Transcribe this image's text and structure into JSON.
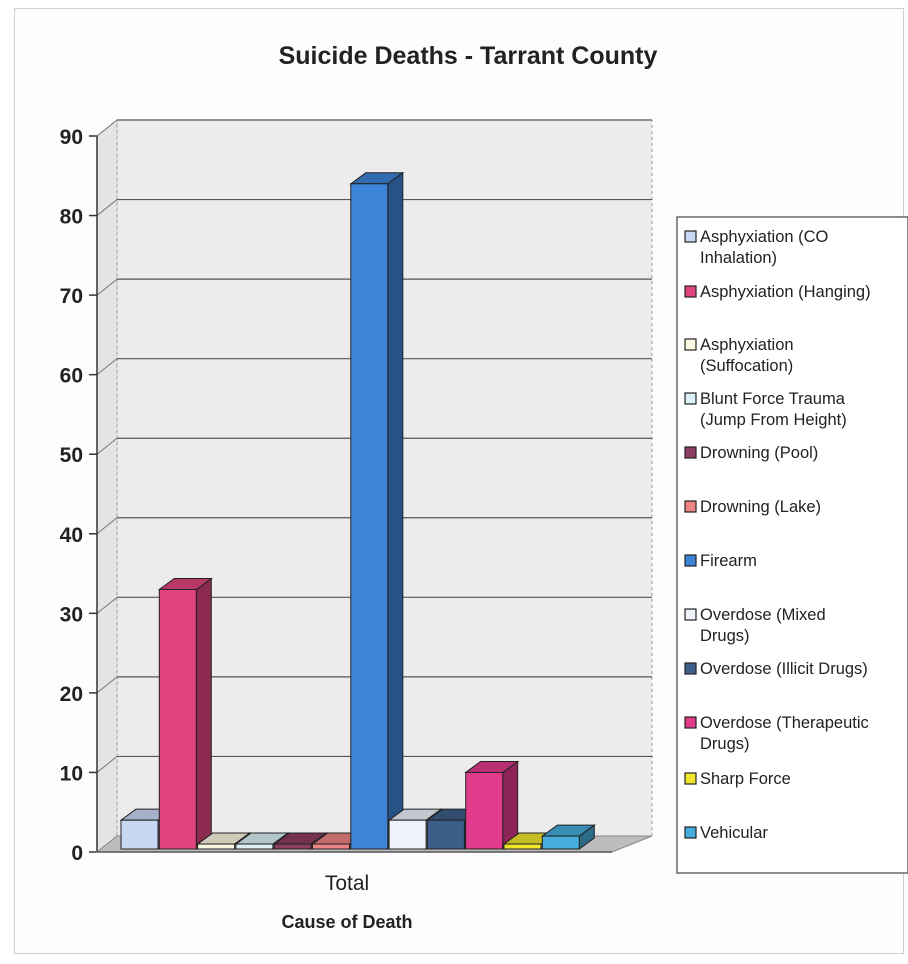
{
  "chart_data": {
    "type": "bar",
    "title": "Suicide Deaths - Tarrant County",
    "xlabel": "Cause of Death",
    "ylabel": "",
    "categories": [
      "Total"
    ],
    "ylim": [
      0,
      90
    ],
    "yticks": [
      0,
      10,
      20,
      30,
      40,
      50,
      60,
      70,
      80,
      90
    ],
    "grid": true,
    "legend_position": "right",
    "series": [
      {
        "name": "Asphyxiation (CO Inhalation)",
        "legend_lines": [
          "Asphyxiation (CO",
          "Inhalation)"
        ],
        "values": [
          4
        ],
        "color": "#c8d8f4"
      },
      {
        "name": "Asphyxiation (Hanging)",
        "legend_lines": [
          "Asphyxiation (Hanging)"
        ],
        "values": [
          33
        ],
        "color": "#e0447e"
      },
      {
        "name": "Asphyxiation (Suffocation)",
        "legend_lines": [
          "Asphyxiation",
          "(Suffocation)"
        ],
        "values": [
          1
        ],
        "color": "#fbf8e2"
      },
      {
        "name": "Blunt Force Trauma (Jump From Height)",
        "legend_lines": [
          "Blunt Force Trauma",
          "(Jump From Height)"
        ],
        "values": [
          1
        ],
        "color": "#dcf1f5"
      },
      {
        "name": "Drowning (Pool)",
        "legend_lines": [
          "Drowning (Pool)"
        ],
        "values": [
          1
        ],
        "color": "#8e3d62"
      },
      {
        "name": "Drowning (Lake)",
        "legend_lines": [
          "Drowning (Lake)"
        ],
        "values": [
          1
        ],
        "color": "#ee8484"
      },
      {
        "name": "Firearm",
        "legend_lines": [
          "Firearm"
        ],
        "values": [
          84
        ],
        "color": "#3d84d6"
      },
      {
        "name": "Overdose (Mixed Drugs)",
        "legend_lines": [
          "Overdose (Mixed",
          "Drugs)"
        ],
        "values": [
          4
        ],
        "color": "#edf2fb"
      },
      {
        "name": "Overdose (Illicit Drugs)",
        "legend_lines": [
          "Overdose (Illicit Drugs)"
        ],
        "values": [
          4
        ],
        "color": "#3e5e8a"
      },
      {
        "name": "Overdose (Therapeutic Drugs)",
        "legend_lines": [
          "Overdose (Therapeutic",
          "Drugs)"
        ],
        "values": [
          10
        ],
        "color": "#e23b8c"
      },
      {
        "name": "Sharp Force",
        "legend_lines": [
          "Sharp Force"
        ],
        "values": [
          1
        ],
        "color": "#f2e62a"
      },
      {
        "name": "Vehicular",
        "legend_lines": [
          "Vehicular"
        ],
        "values": [
          2
        ],
        "color": "#45acdb"
      }
    ]
  }
}
